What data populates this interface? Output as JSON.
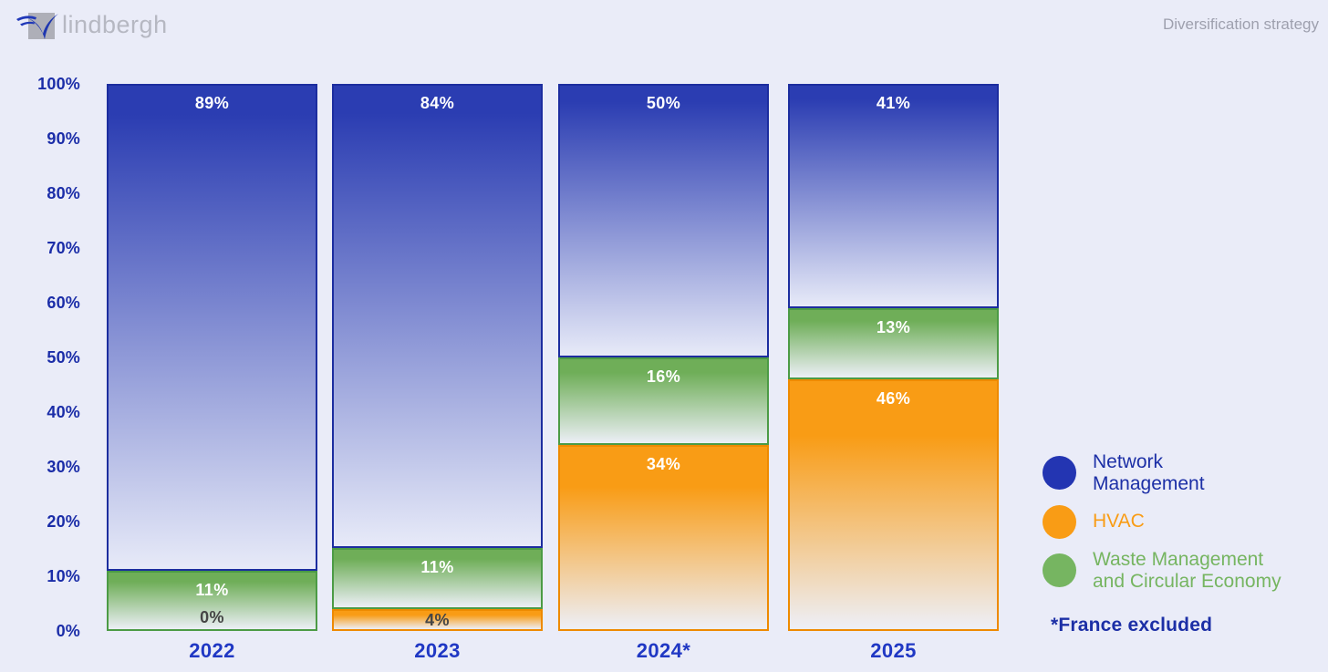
{
  "header": {
    "logo_text": "lindbergh",
    "page_label": "Diversification strategy"
  },
  "chart_data": {
    "type": "bar",
    "stacked": true,
    "title": "Diversification strategy",
    "categories": [
      "2022",
      "2023",
      "2024*",
      "2025"
    ],
    "series": [
      {
        "name": "Network Management",
        "values": [
          89,
          84,
          50,
          41
        ],
        "color": "#2B3DB2",
        "border_color": "#1C2D9F",
        "gradient_end": "#E7EAF8",
        "solid_stop_pct": 6,
        "value_label_colors": [
          "#FFFFFF",
          "#FFFFFF",
          "#FFFFFF",
          "#FFFFFF"
        ]
      },
      {
        "name": "HVAC",
        "values": [
          0,
          4,
          34,
          46
        ],
        "color": "#F99C15",
        "border_color": "#EE8A00",
        "gradient_end": "#EDEFF7",
        "solid_stop_pct": 22,
        "value_label_colors": [
          "#454545",
          "#454545",
          "#FFFFFF",
          "#FFFFFF"
        ]
      },
      {
        "name": "Waste Management and Circular Economy",
        "values": [
          11,
          11,
          16,
          13
        ],
        "color": "#6FAE58",
        "border_color": "#4C9B45",
        "gradient_end": "#ECEFF6",
        "solid_stop_pct": 16,
        "value_label_colors": [
          "#FFFFFF",
          "#FFFFFF",
          "#FFFFFF",
          "#FFFFFF"
        ]
      }
    ],
    "stack_order_top_to_bottom": [
      "Network Management",
      "Waste Management and Circular Economy",
      "HVAC"
    ],
    "value_suffix": "%",
    "y_axis": {
      "min": 0,
      "max": 100,
      "step": 10,
      "suffix": "%"
    },
    "legend_position": "right",
    "footnote": "*France excluded"
  },
  "legend": {
    "items": [
      {
        "label": "Network\nManagement",
        "swatch_color": "#2335B2",
        "text_color": "#1C2FA6"
      },
      {
        "label": "HVAC",
        "swatch_color": "#F99C15",
        "text_color": "#F99C15"
      },
      {
        "label": "Waste Management\nand Circular Economy",
        "swatch_color": "#76B561",
        "text_color": "#76B561"
      }
    ],
    "footnote": "*France excluded"
  }
}
